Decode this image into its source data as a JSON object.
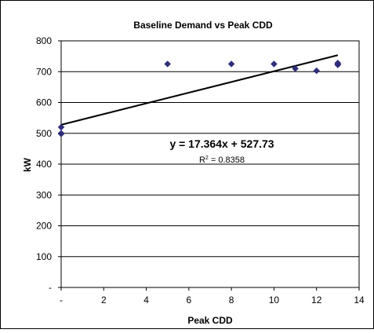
{
  "chart_data": {
    "type": "scatter",
    "title": "Baseline Demand vs Peak CDD",
    "xlabel": "Peak CDD",
    "ylabel": "kW",
    "xlim": [
      0,
      14
    ],
    "ylim": [
      0,
      800
    ],
    "x_ticks": [
      0,
      2,
      4,
      6,
      8,
      10,
      12,
      14
    ],
    "x_tick_labels": [
      "-",
      "2",
      "4",
      "6",
      "8",
      "10",
      "12",
      "14"
    ],
    "y_ticks": [
      0,
      100,
      200,
      300,
      400,
      500,
      600,
      700,
      800
    ],
    "y_tick_labels": [
      "-",
      "100",
      "200",
      "300",
      "400",
      "500",
      "600",
      "700",
      "800"
    ],
    "grid": "horizontal",
    "legend": "none",
    "marker_color": "#2e2e7a",
    "series": [
      {
        "points": [
          [
            0,
            520
          ],
          [
            0,
            500
          ],
          [
            0,
            498
          ],
          [
            5,
            725
          ],
          [
            8,
            725
          ],
          [
            10,
            725
          ],
          [
            11,
            710
          ],
          [
            12,
            703
          ],
          [
            13,
            728
          ],
          [
            13,
            725
          ],
          [
            13,
            722
          ]
        ]
      }
    ],
    "trendline": {
      "slope": 17.364,
      "intercept": 527.73,
      "x_range": [
        0,
        13
      ],
      "equation_label": "y = 17.364x + 527.73",
      "r2_prefix": "R",
      "r2_sup": "2",
      "r2_value": " = 0.8358"
    }
  }
}
